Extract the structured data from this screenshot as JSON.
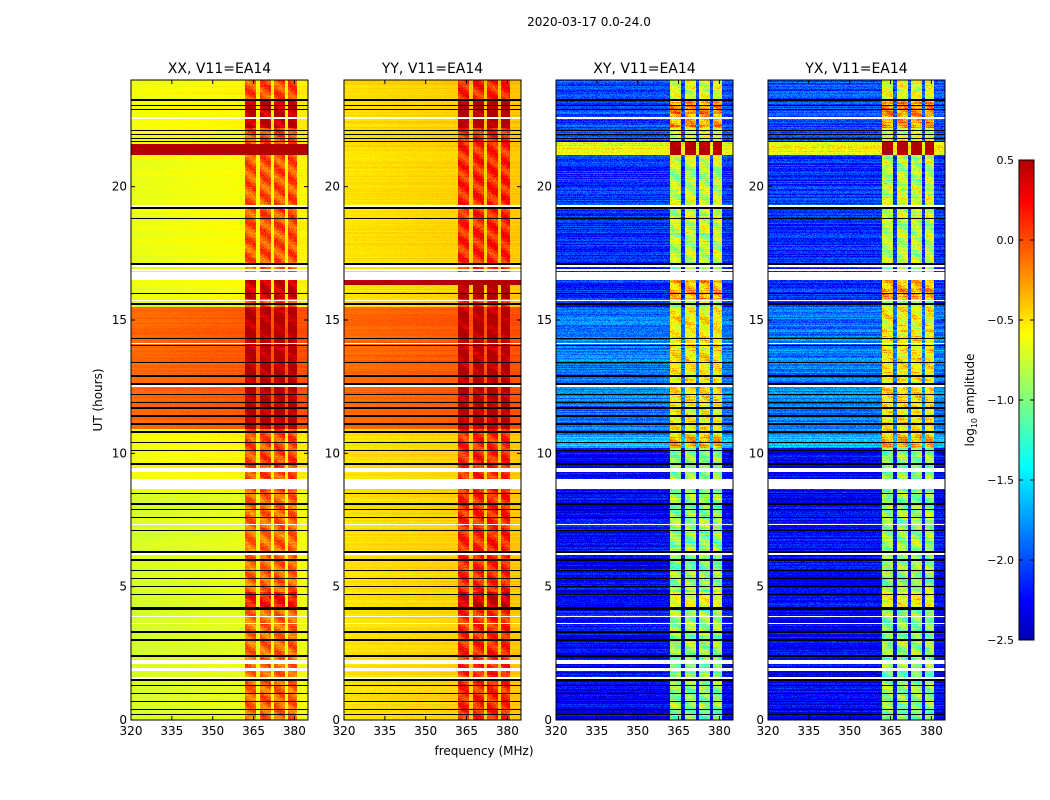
{
  "figure": {
    "title": "2020-03-17 0.0-24.0",
    "xlabel": "frequency (MHz)",
    "ylabel": "UT (hours)"
  },
  "colorbar": {
    "label_prefix": "log",
    "label_sub": "10",
    "label_suffix": " amplitude",
    "range": [
      -2.5,
      0.5
    ],
    "colormap": "jet",
    "ticks": [
      0.5,
      0.0,
      -0.5,
      -1.0,
      -1.5,
      -2.0,
      -2.5
    ],
    "tick_labels": [
      "0.5",
      "0.0",
      "−0.5",
      "−1.0",
      "−1.5",
      "−2.0",
      "−2.5"
    ]
  },
  "chart_data": [
    {
      "type": "heatmap",
      "title": "XX, V11=EA14",
      "xlim": [
        320,
        385
      ],
      "ylim": [
        0,
        24
      ],
      "xticks": [
        320,
        335,
        350,
        365,
        380
      ],
      "xtick_labels": [
        "320",
        "335",
        "350",
        "365",
        "380"
      ],
      "yticks": [
        0,
        5,
        10,
        15,
        20
      ],
      "ytick_labels": [
        "0",
        "5",
        "10",
        "15",
        "20"
      ],
      "time_levels": [
        [
          0,
          8.6,
          -0.72
        ],
        [
          8.6,
          10.9,
          -0.62
        ],
        [
          10.9,
          15.5,
          -0.1
        ],
        [
          15.5,
          21.2,
          -0.65
        ],
        [
          21.2,
          21.6,
          0.5
        ],
        [
          21.6,
          24,
          -0.62
        ]
      ],
      "rfi_add": 0.55
    },
    {
      "type": "heatmap",
      "title": "YY, V11=EA14",
      "xlim": [
        320,
        385
      ],
      "ylim": [
        0,
        24
      ],
      "xticks": [
        320,
        335,
        350,
        365,
        380
      ],
      "xtick_labels": [
        "320",
        "335",
        "350",
        "365",
        "380"
      ],
      "yticks": [
        0,
        5,
        10,
        15,
        20
      ],
      "ytick_labels": [
        "0",
        "5",
        "10",
        "15",
        "20"
      ],
      "time_levels": [
        [
          0,
          10.9,
          -0.5
        ],
        [
          10.9,
          15.5,
          -0.1
        ],
        [
          15.5,
          16.3,
          -0.5
        ],
        [
          16.3,
          16.5,
          0.5
        ],
        [
          16.5,
          21.5,
          -0.5
        ],
        [
          21.5,
          24,
          -0.48
        ]
      ],
      "rfi_add": 0.55
    },
    {
      "type": "heatmap",
      "title": "XY, V11=EA14",
      "xlim": [
        320,
        385
      ],
      "ylim": [
        0,
        24
      ],
      "xticks": [
        320,
        335,
        350,
        365,
        380
      ],
      "xtick_labels": [
        "320",
        "335",
        "350",
        "365",
        "380"
      ],
      "yticks": [
        0,
        5,
        10,
        15,
        20
      ],
      "ytick_labels": [
        "0",
        "5",
        "10",
        "15",
        "20"
      ],
      "time_levels": [
        [
          0,
          10.2,
          -2.25
        ],
        [
          10.2,
          10.7,
          -1.6
        ],
        [
          10.7,
          15.5,
          -1.85
        ],
        [
          15.5,
          21.2,
          -2.1
        ],
        [
          21.2,
          21.7,
          -0.6
        ],
        [
          21.7,
          24,
          -2.0
        ]
      ],
      "rfi_add": 1.3
    },
    {
      "type": "heatmap",
      "title": "YX, V11=EA14",
      "xlim": [
        320,
        385
      ],
      "ylim": [
        0,
        24
      ],
      "xticks": [
        320,
        335,
        350,
        365,
        380
      ],
      "xtick_labels": [
        "320",
        "335",
        "350",
        "365",
        "380"
      ],
      "yticks": [
        0,
        5,
        10,
        15,
        20
      ],
      "ytick_labels": [
        "0",
        "5",
        "10",
        "15",
        "20"
      ],
      "time_levels": [
        [
          0,
          10.2,
          -2.25
        ],
        [
          10.2,
          10.7,
          -1.6
        ],
        [
          10.7,
          15.5,
          -1.85
        ],
        [
          15.5,
          21.2,
          -2.1
        ],
        [
          21.2,
          21.7,
          -0.6
        ],
        [
          21.7,
          24,
          -2.0
        ]
      ],
      "rfi_add": 1.3
    }
  ],
  "shared_structure": {
    "rfi_columns_mhz": [
      [
        362,
        366
      ],
      [
        367.5,
        371.5
      ],
      [
        372.5,
        376.5
      ],
      [
        377.5,
        381
      ]
    ],
    "rfi_boost_hours": [
      [
        22.2,
        23.3,
        0.45
      ],
      [
        15.8,
        16.6,
        0.45
      ],
      [
        4.2,
        4.8,
        0.3
      ]
    ],
    "flagged_black_hours": [
      23.25,
      23.05,
      22.9,
      22.6,
      22.1,
      21.95,
      21.8,
      21.7,
      19.3,
      19.2,
      18.8,
      17.1,
      16.0,
      15.6,
      14.3,
      14.05,
      13.4,
      12.9,
      12.6,
      12.2,
      11.9,
      11.7,
      11.4,
      11.1,
      10.8,
      10.4,
      10.1,
      9.6,
      8.5,
      8.1,
      7.9,
      7.6,
      7.1,
      6.3,
      6.0,
      5.6,
      5.3,
      5.0,
      4.7,
      4.2,
      4.15,
      3.3,
      3.0,
      2.4,
      1.5,
      1.3,
      1.0,
      0.7,
      0.4,
      0.2
    ],
    "blank_white_hours": [
      [
        16.5,
        16.8
      ],
      [
        16.85,
        16.92
      ],
      [
        9.3,
        9.45
      ],
      [
        8.65,
        9.05
      ],
      [
        2.1,
        2.25
      ],
      [
        1.85,
        1.95
      ],
      [
        1.55,
        1.6
      ],
      [
        19.25,
        19.3
      ],
      [
        17.0,
        17.05
      ],
      [
        15.7,
        15.75
      ],
      [
        14.1,
        14.15
      ],
      [
        12.5,
        12.55
      ],
      [
        7.3,
        7.35
      ],
      [
        6.2,
        6.25
      ],
      [
        3.6,
        3.65
      ],
      [
        3.85,
        3.9
      ],
      [
        22.55,
        22.6
      ]
    ]
  }
}
